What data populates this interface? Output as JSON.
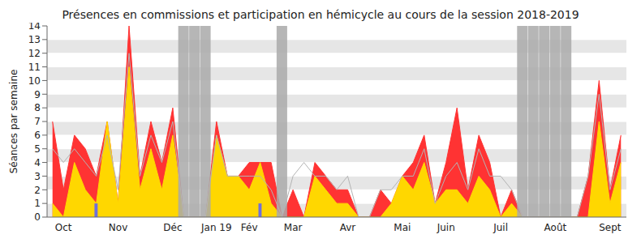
{
  "chart_data": {
    "type": "area",
    "title": "Présences en commissions et participation en hémicycle au cours de la session 2018-2019",
    "y_label": "Séances par semaine",
    "categories": [
      null,
      "Oct",
      null,
      null,
      null,
      null,
      "Nov",
      null,
      null,
      null,
      null,
      "Déc",
      null,
      null,
      null,
      "Jan 19",
      null,
      null,
      "Fév",
      null,
      null,
      null,
      "Mar",
      null,
      null,
      null,
      null,
      "Avr",
      null,
      null,
      null,
      null,
      "Mai",
      null,
      null,
      null,
      "Juin",
      null,
      null,
      null,
      null,
      "Juil",
      null,
      null,
      null,
      null,
      "Août",
      null,
      null,
      null,
      null,
      "Sept",
      null
    ],
    "series": [
      {
        "type": "shade",
        "color": "#a9a9a9",
        "values": [
          null,
          null,
          null,
          null,
          null,
          null,
          null,
          null,
          null,
          null,
          null,
          null,
          14,
          14,
          14,
          null,
          null,
          null,
          null,
          null,
          null,
          14,
          null,
          null,
          null,
          null,
          null,
          null,
          null,
          null,
          null,
          null,
          null,
          null,
          null,
          null,
          null,
          null,
          null,
          null,
          null,
          null,
          null,
          14,
          14,
          14,
          14,
          14,
          null,
          null,
          null,
          null,
          null
        ]
      },
      {
        "type": "area",
        "color": "#ff3333",
        "values": [
          7,
          2,
          6,
          5,
          3,
          7,
          1,
          14,
          3,
          7,
          4,
          8,
          0,
          0,
          0,
          7,
          3,
          3,
          4,
          4,
          4,
          0,
          2,
          0,
          4,
          3,
          2,
          2,
          0,
          0,
          2,
          1,
          3,
          4,
          6,
          1,
          4,
          8,
          2,
          6,
          4,
          0,
          2,
          0,
          0,
          0,
          0,
          0,
          0,
          3,
          10,
          2,
          6
        ]
      },
      {
        "type": "area",
        "color": "#ffd700",
        "values": [
          1,
          0,
          4,
          2,
          1,
          7,
          1,
          11,
          2,
          5,
          2,
          6,
          0,
          0,
          0,
          6,
          3,
          3,
          2,
          4,
          1,
          0,
          0,
          0,
          3,
          2,
          1,
          1,
          0,
          0,
          0,
          1,
          3,
          2,
          4,
          1,
          2,
          2,
          1,
          3,
          2,
          0,
          1,
          0,
          0,
          0,
          0,
          0,
          0,
          0,
          7,
          1,
          4
        ]
      },
      {
        "type": "line",
        "color": "#b4b4b4",
        "values": [
          5,
          4,
          5,
          4,
          3,
          6,
          2,
          12,
          3,
          6,
          4,
          7,
          0,
          0,
          0,
          6,
          3,
          3,
          3,
          3,
          2,
          0,
          3,
          4,
          3,
          3,
          2,
          3,
          0,
          0,
          2,
          2,
          3,
          3,
          5,
          1,
          3,
          4,
          2,
          5,
          3,
          3,
          2,
          0,
          0,
          0,
          0,
          0,
          0,
          3,
          9,
          2,
          5
        ]
      },
      {
        "type": "bar",
        "color": "#6f6fdc",
        "values": [
          null,
          null,
          null,
          null,
          1,
          null,
          null,
          null,
          null,
          null,
          null,
          null,
          null,
          null,
          null,
          null,
          null,
          null,
          null,
          1,
          null,
          null,
          null,
          null,
          null,
          null,
          null,
          null,
          null,
          null,
          null,
          null,
          null,
          null,
          null,
          null,
          null,
          null,
          null,
          null,
          null,
          null,
          null,
          null,
          null,
          null,
          null,
          null,
          null,
          null,
          null,
          null,
          null
        ]
      }
    ],
    "ylim": [
      0,
      14
    ],
    "yticks": [
      0,
      1,
      2,
      3,
      4,
      5,
      6,
      7,
      8,
      9,
      10,
      11,
      12,
      13,
      14
    ],
    "grid": true,
    "stacked": false
  }
}
